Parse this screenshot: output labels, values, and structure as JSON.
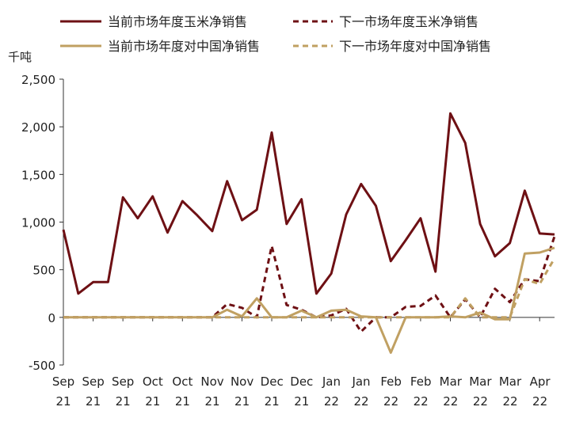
{
  "chart_data": {
    "type": "line",
    "title": "",
    "xlabel": "",
    "ylabel": "千吨",
    "ylim": [
      -500,
      2500
    ],
    "yticks": [
      -500,
      0,
      500,
      1000,
      1500,
      2000,
      2500
    ],
    "ytick_labels": [
      "-500",
      "0",
      "500",
      "1,000",
      "1,500",
      "2,000",
      "2,500"
    ],
    "xtick_labels": [
      {
        "month": "Sep",
        "year": "21"
      },
      {
        "month": "Sep",
        "year": "21"
      },
      {
        "month": "Sep",
        "year": "21"
      },
      {
        "month": "Oct",
        "year": "21"
      },
      {
        "month": "Oct",
        "year": "21"
      },
      {
        "month": "Nov",
        "year": "21"
      },
      {
        "month": "Nov",
        "year": "21"
      },
      {
        "month": "Dec",
        "year": "21"
      },
      {
        "month": "Dec",
        "year": "21"
      },
      {
        "month": "Jan",
        "year": "22"
      },
      {
        "month": "Jan",
        "year": "22"
      },
      {
        "month": "Feb",
        "year": "22"
      },
      {
        "month": "Feb",
        "year": "22"
      },
      {
        "month": "Mar",
        "year": "22"
      },
      {
        "month": "Mar",
        "year": "22"
      },
      {
        "month": "Mar",
        "year": "22"
      },
      {
        "month": "Apr",
        "year": "22"
      }
    ],
    "legend_position": "top",
    "series": [
      {
        "name": "当前市场年度玉米净销售",
        "color": "#6e1014",
        "dash": "solid",
        "values": [
          920,
          250,
          370,
          370,
          1260,
          1040,
          1270,
          890,
          1220,
          1070,
          905,
          1430,
          1020,
          1130,
          1940,
          980,
          1240,
          250,
          460,
          1080,
          1400,
          1170,
          590,
          810,
          1040,
          480,
          2140,
          1830,
          980,
          640,
          780,
          1330,
          880,
          870
        ]
      },
      {
        "name": "下一市场年度玉米净销售",
        "color": "#6e1014",
        "dash": "dashed",
        "values": [
          0,
          0,
          0,
          0,
          0,
          0,
          0,
          0,
          0,
          0,
          0,
          140,
          100,
          0,
          750,
          130,
          80,
          0,
          20,
          90,
          -150,
          0,
          0,
          110,
          120,
          230,
          0,
          190,
          0,
          300,
          160,
          400,
          380,
          850
        ]
      },
      {
        "name": "当前市场年度对中国净销售",
        "color": "#c0a062",
        "dash": "solid",
        "values": [
          0,
          0,
          0,
          0,
          0,
          0,
          0,
          0,
          0,
          0,
          0,
          80,
          10,
          200,
          0,
          0,
          70,
          0,
          70,
          80,
          10,
          0,
          -370,
          0,
          0,
          0,
          10,
          0,
          50,
          -20,
          -20,
          670,
          680,
          730
        ]
      },
      {
        "name": "下一市场年度对中国净销售",
        "color": "#c0a062",
        "dash": "dashed",
        "values": [
          0,
          0,
          0,
          0,
          0,
          0,
          0,
          0,
          0,
          0,
          0,
          0,
          0,
          0,
          0,
          0,
          0,
          0,
          0,
          0,
          0,
          0,
          0,
          0,
          0,
          0,
          0,
          200,
          0,
          0,
          0,
          400,
          350,
          620
        ]
      }
    ]
  }
}
